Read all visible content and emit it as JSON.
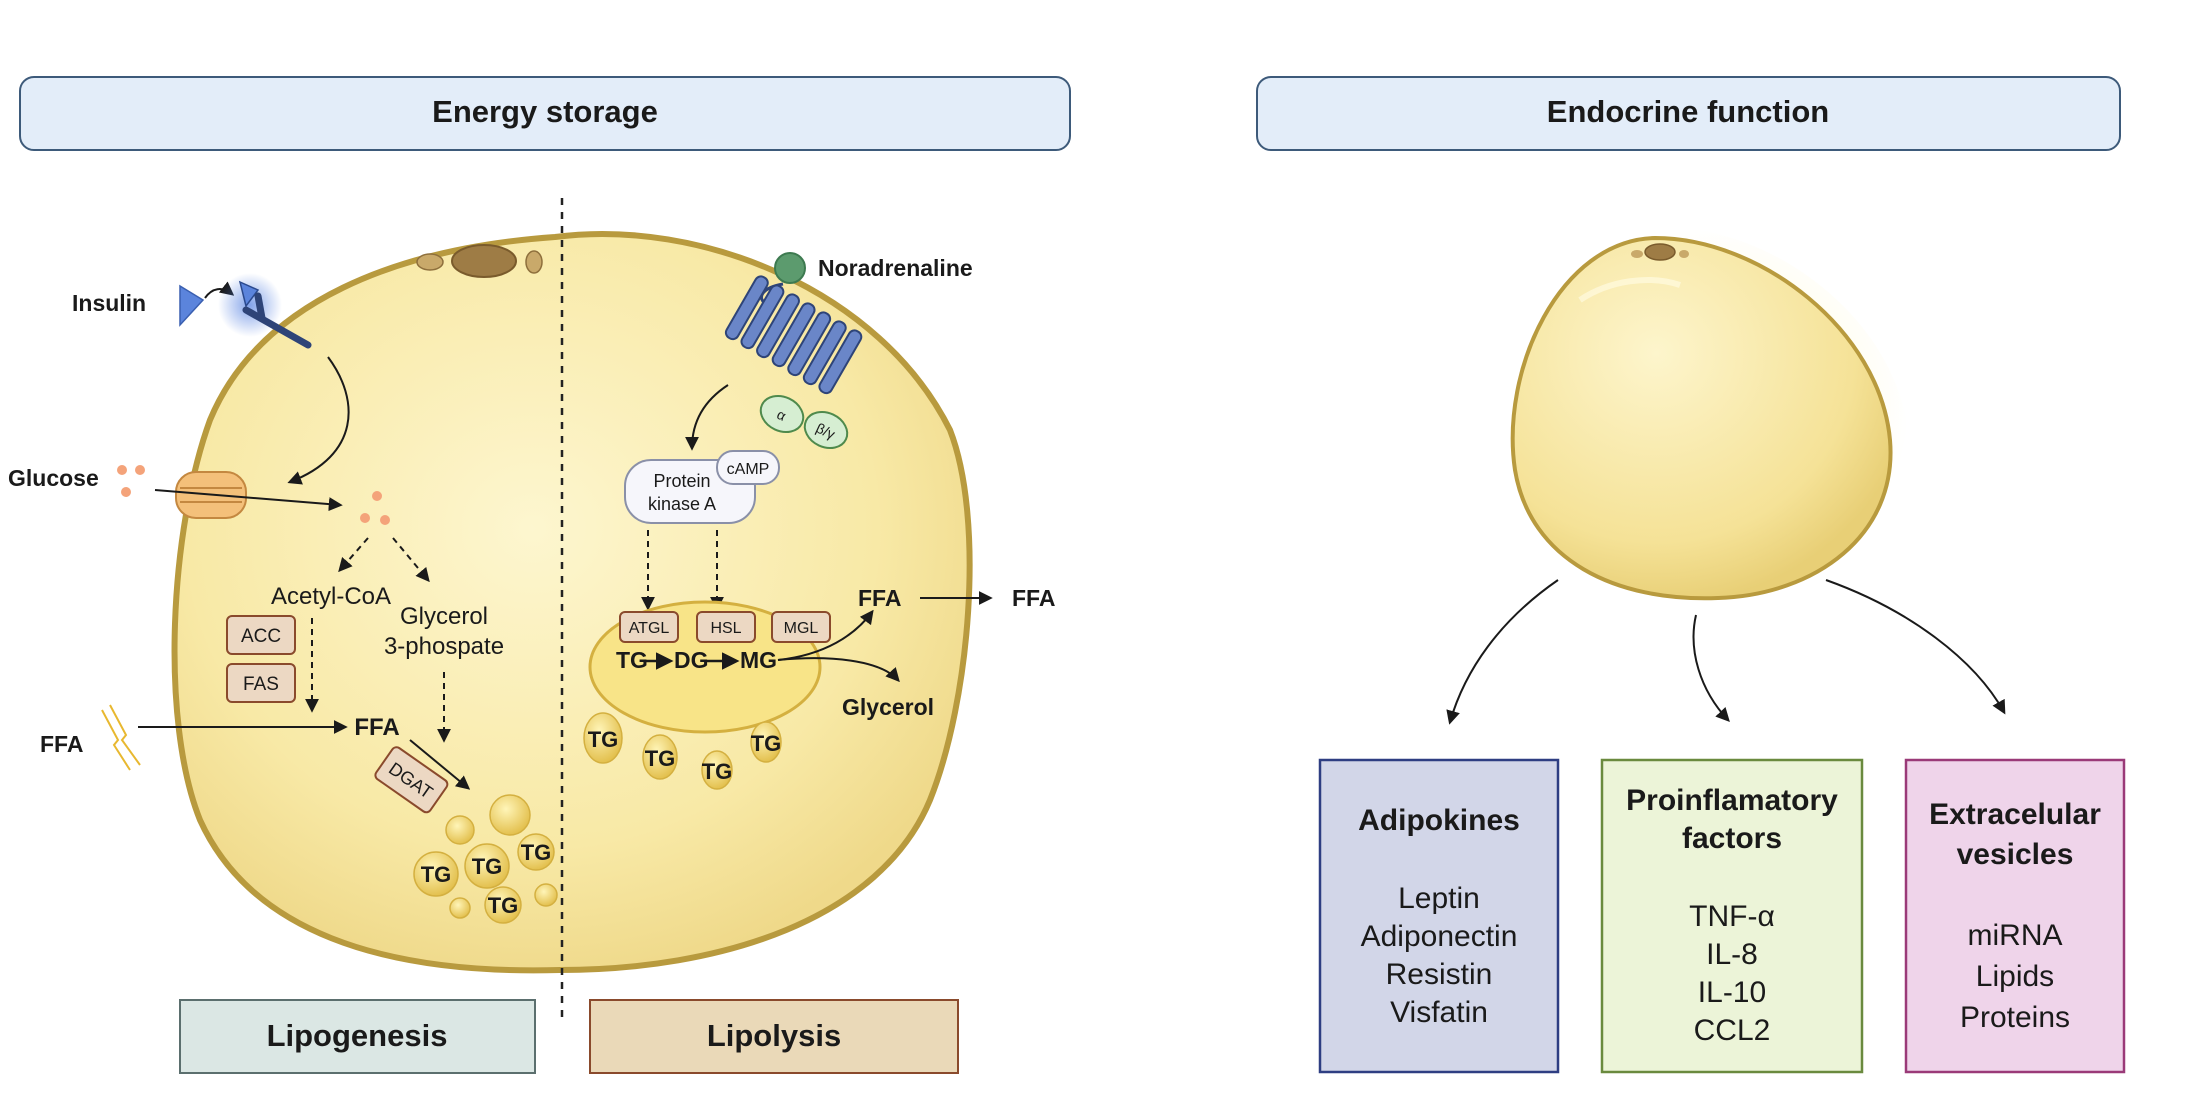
{
  "headers": {
    "energy_storage": "Energy storage",
    "endocrine_function": "Endocrine function"
  },
  "left_cell": {
    "insulin": "Insulin",
    "glucose": "Glucose",
    "acetyl_coa": "Acetyl-CoA",
    "glycerol_line1": "Glycerol",
    "glycerol_line2": "3-phospate",
    "acc": "ACC",
    "fas": "FAS",
    "ffa_outside": "FFA",
    "ffa_inside": "FFA",
    "dgat": "DGAT",
    "tg": "TG"
  },
  "right_cell": {
    "noradrenaline": "Noradrenaline",
    "alpha": "α",
    "beta_gamma": "β/γ",
    "camp": "cAMP",
    "pka_line1": "Protein",
    "pka_line2": "kinase A",
    "atgl": "ATGL",
    "hsl": "HSL",
    "mgl": "MGL",
    "tg": "TG",
    "dg": "DG",
    "mg": "MG",
    "ffa_inside": "FFA",
    "ffa_out": "FFA",
    "glycerol": "Glycerol"
  },
  "process_labels": {
    "lipogenesis": "Lipogenesis",
    "lipolysis": "Lipolysis"
  },
  "endocrine": {
    "adipokines": {
      "title": "Adipokines",
      "items": [
        "Leptin",
        "Adiponectin",
        "Resistin",
        "Visfatin"
      ]
    },
    "proinflammatory": {
      "title_line1": "Proinflamatory",
      "title_line2": "factors",
      "items": [
        "TNF-α",
        "IL-8",
        "IL-10",
        "CCL2"
      ]
    },
    "vesicles": {
      "title_line1": "Extracelular",
      "title_line2": "vesicles",
      "items": [
        "miRNA",
        "Lipids",
        "Proteins"
      ]
    }
  },
  "colors": {
    "header_fill": "#e3edf9",
    "header_stroke": "#3d5a7a",
    "cell_fill": "#f9ebaa",
    "cell_stroke": "#b89a3e",
    "lipogenesis_fill": "#dbe7e4",
    "lipolysis_fill": "#ead9b8",
    "adipokines_fill": "#d2d6e8",
    "proinflammatory_fill": "#ecf4d8",
    "vesicles_fill": "#efd4ea",
    "enzyme_fill": "#ecd8c3",
    "receptor_blue": "#6a86c8"
  }
}
